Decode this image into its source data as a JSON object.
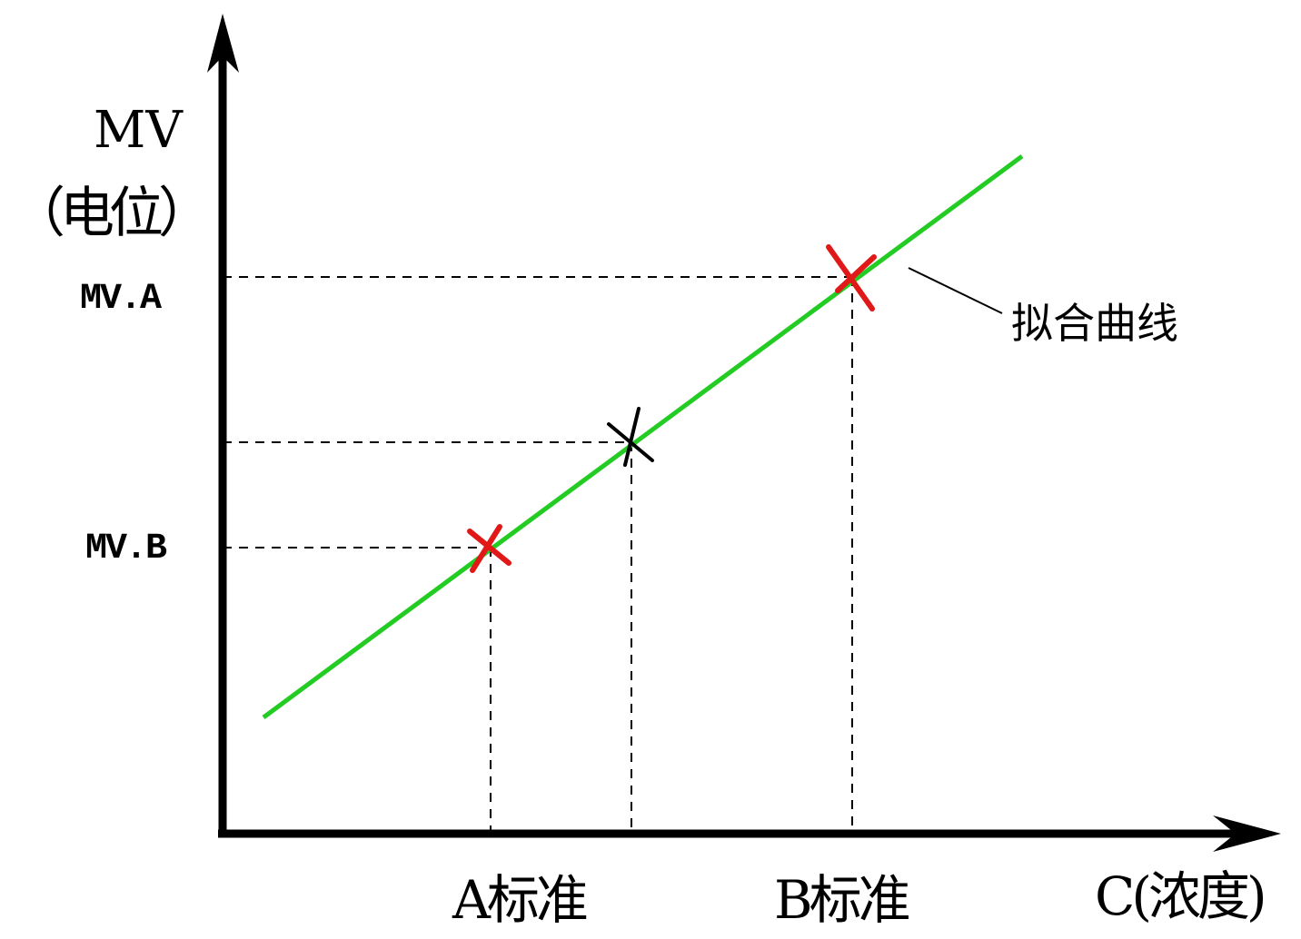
{
  "diagram": {
    "y_axis_label": "MV",
    "y_axis_label_sub": "（电位）",
    "x_axis_label": "C(浓度)",
    "y_ticks": {
      "mv_a": "MV.A",
      "mv_b": "MV.B"
    },
    "x_ticks": {
      "std_a": "A标准",
      "std_b": "B标准"
    },
    "curve_annotation": "拟合曲线"
  },
  "colors": {
    "fit_line": "#22cc22",
    "standard_marker": "#e01818",
    "sample_marker": "#000000",
    "axis": "#000000"
  }
}
